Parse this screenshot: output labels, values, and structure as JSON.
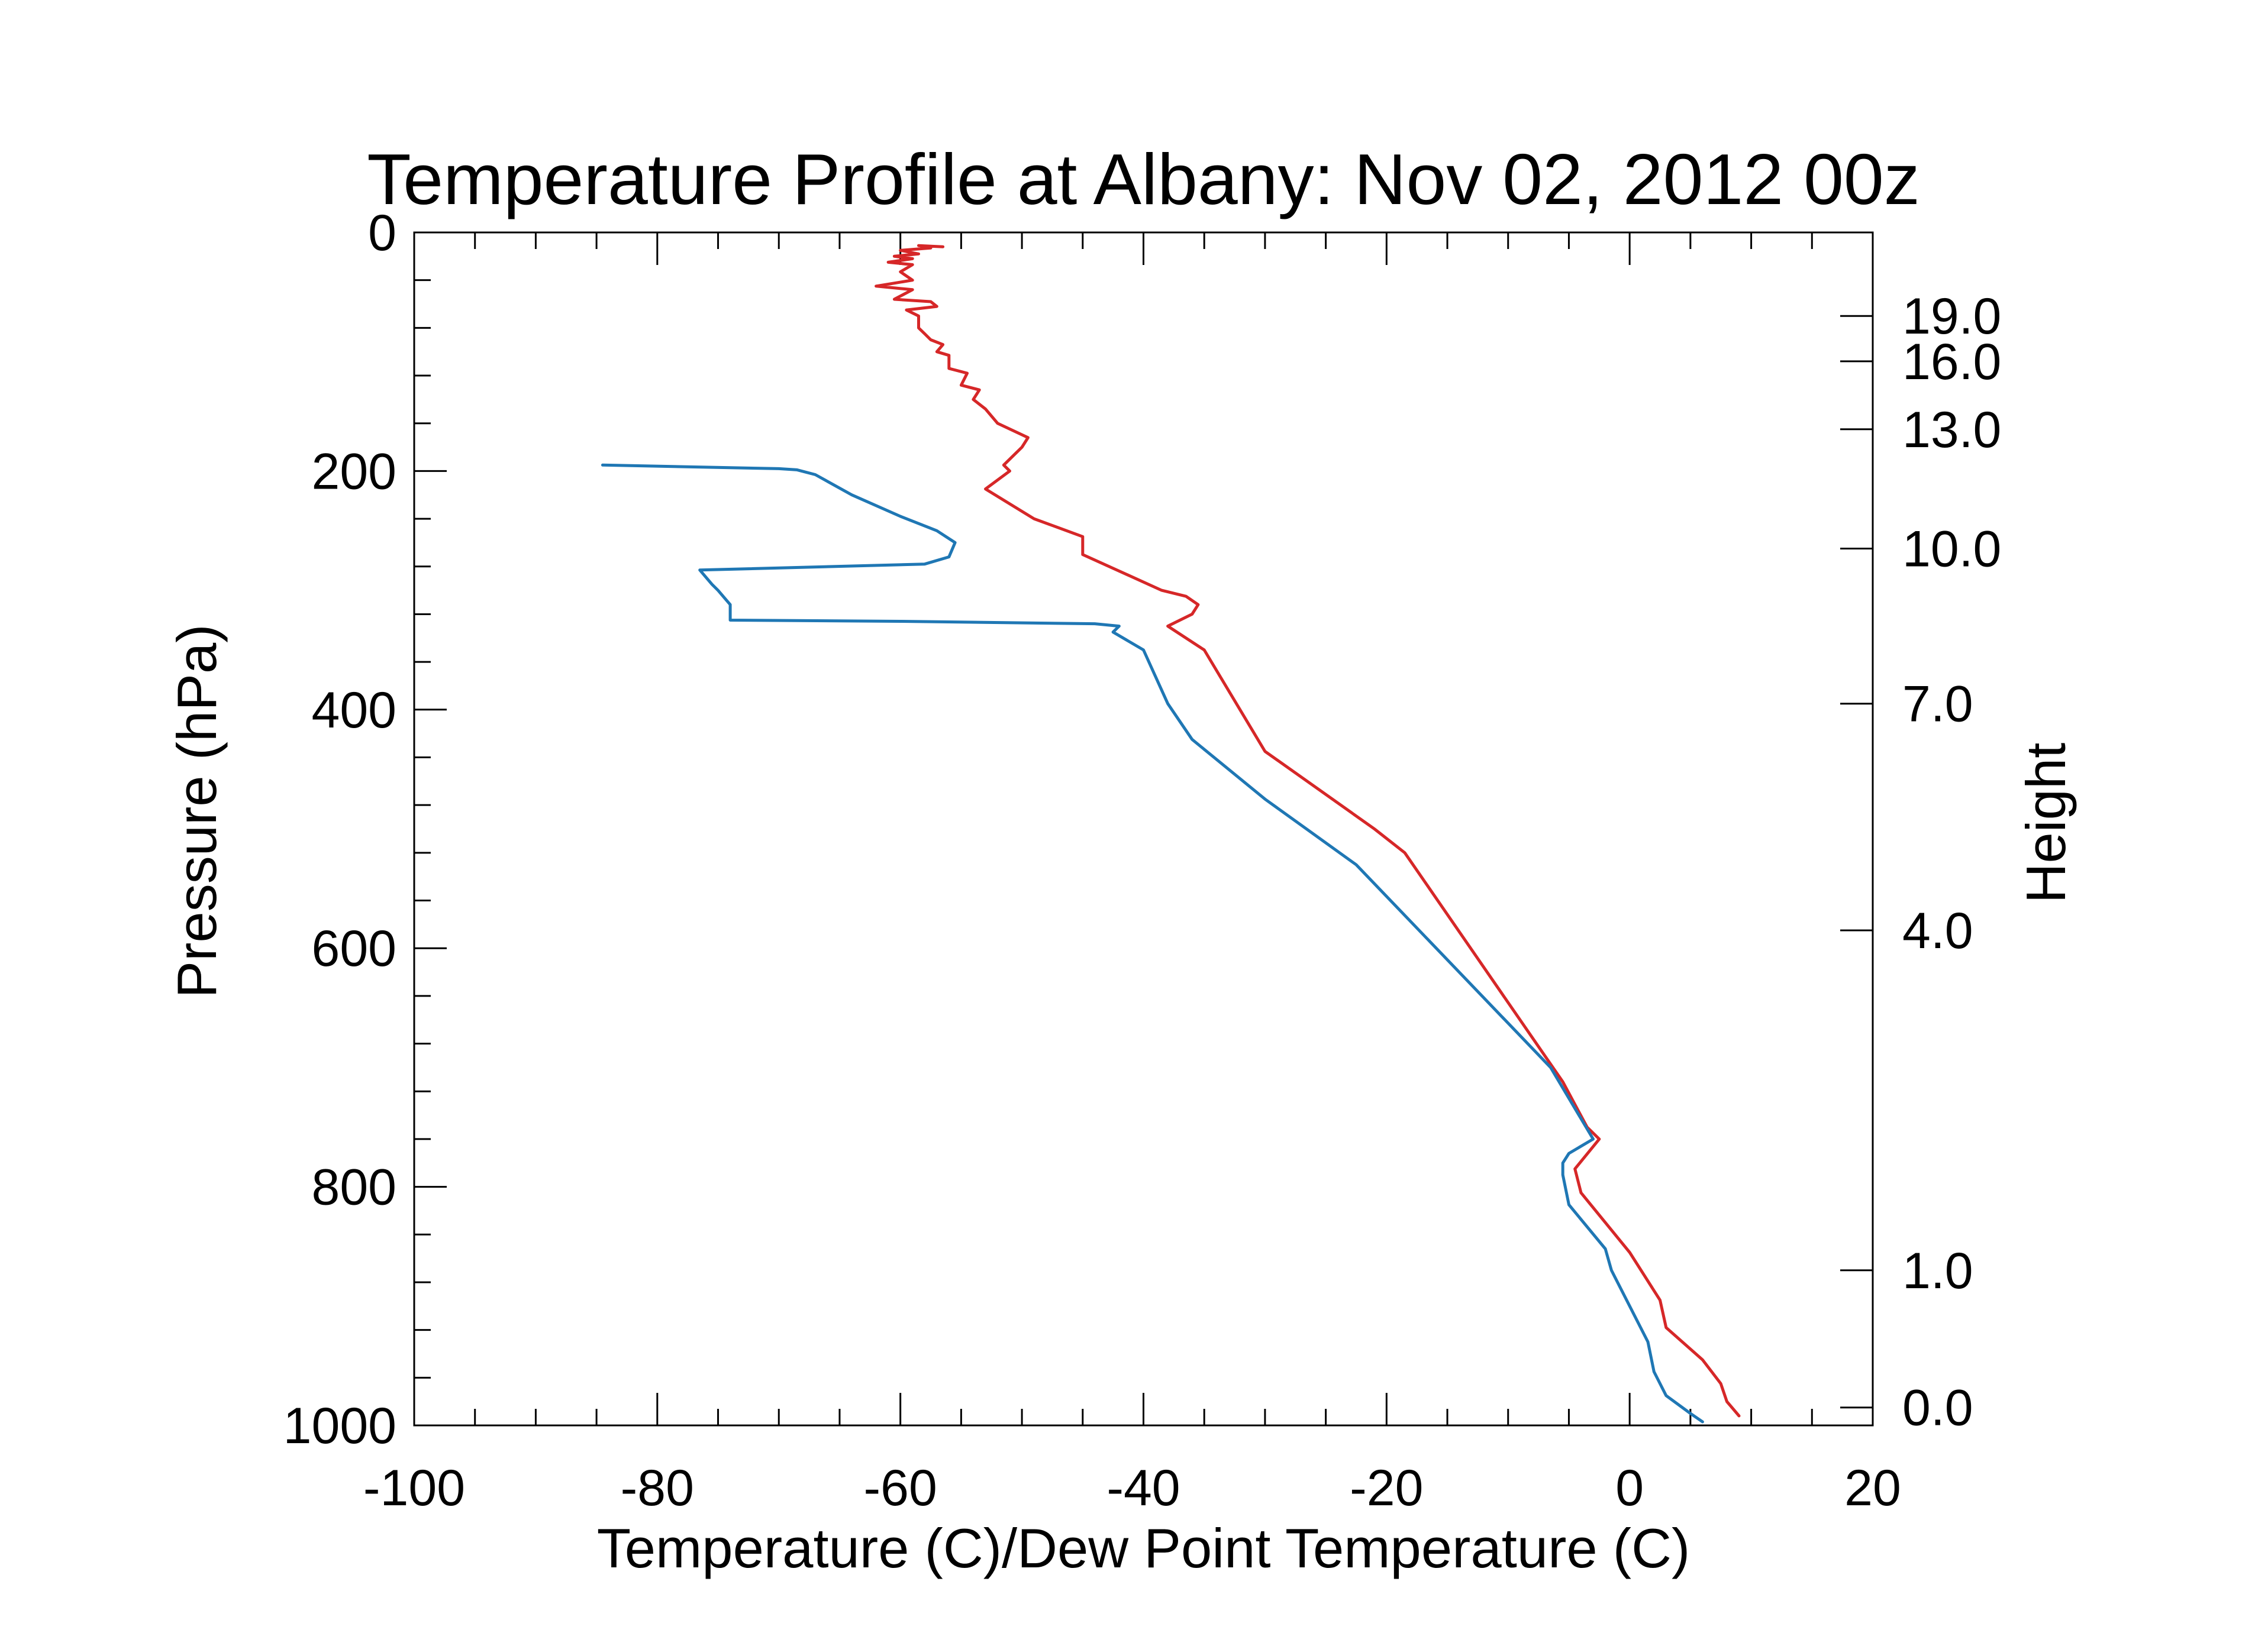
{
  "chart_data": {
    "type": "line",
    "title": "Temperature Profile at Albany: Nov 02, 2012 00z",
    "xlabel": "Temperature (C)/Dew Point Temperature (C)",
    "ylabel": "Pressure (hPa)",
    "y2label": "Height",
    "xlim": [
      -100,
      20
    ],
    "ylim": [
      1000,
      0
    ],
    "y_inverted": true,
    "x_major_ticks": [
      -100,
      -80,
      -60,
      -40,
      -20,
      0,
      20
    ],
    "x_tick_labels": [
      "-100",
      "-80",
      "-60",
      "-40",
      "-20",
      "0",
      "20"
    ],
    "x_minor_ticks": [
      -95,
      -90,
      -85,
      -75,
      -70,
      -65,
      -55,
      -50,
      -45,
      -35,
      -30,
      -25,
      -15,
      -10,
      -5,
      5,
      10,
      15
    ],
    "y_major_ticks": [
      0,
      200,
      400,
      600,
      800,
      1000
    ],
    "y_tick_labels": [
      "0",
      "200",
      "400",
      "600",
      "800",
      "1000"
    ],
    "y_minor_ticks": [
      40,
      80,
      120,
      160,
      240,
      280,
      320,
      360,
      440,
      480,
      520,
      560,
      640,
      680,
      720,
      760,
      840,
      880,
      920,
      960
    ],
    "height_ticks": [
      {
        "label": "19.0",
        "pressure": 70
      },
      {
        "label": "16.0",
        "pressure": 108
      },
      {
        "label": "13.0",
        "pressure": 165
      },
      {
        "label": "10.0",
        "pressure": 265
      },
      {
        "label": "7.0",
        "pressure": 395
      },
      {
        "label": "4.0",
        "pressure": 585
      },
      {
        "label": "1.0",
        "pressure": 870
      },
      {
        "label": "0.0",
        "pressure": 985
      }
    ],
    "series": [
      {
        "name": "Temperature",
        "color": "#d62728",
        "points": [
          [
            9,
            992
          ],
          [
            8,
            980
          ],
          [
            7.5,
            965
          ],
          [
            6,
            945
          ],
          [
            3,
            918
          ],
          [
            2.5,
            895
          ],
          [
            0,
            855
          ],
          [
            -2,
            830
          ],
          [
            -4,
            805
          ],
          [
            -4.5,
            785
          ],
          [
            -2.5,
            760
          ],
          [
            -3.5,
            750
          ],
          [
            -5.5,
            712
          ],
          [
            -18.5,
            520
          ],
          [
            -21,
            500
          ],
          [
            -30,
            435
          ],
          [
            -35,
            350
          ],
          [
            -38,
            330
          ],
          [
            -36,
            320
          ],
          [
            -35.5,
            312
          ],
          [
            -36.5,
            305
          ],
          [
            -38.5,
            300
          ],
          [
            -45,
            270
          ],
          [
            -45,
            255
          ],
          [
            -49,
            240
          ],
          [
            -53,
            215
          ],
          [
            -51,
            200
          ],
          [
            -51.5,
            195
          ],
          [
            -50,
            180
          ],
          [
            -49.5,
            172
          ],
          [
            -52,
            160
          ],
          [
            -53,
            148
          ],
          [
            -54,
            140
          ],
          [
            -53.5,
            132
          ],
          [
            -55,
            128
          ],
          [
            -54.5,
            118
          ],
          [
            -56,
            114
          ],
          [
            -56,
            103
          ],
          [
            -57,
            100
          ],
          [
            -56.5,
            94
          ],
          [
            -57.5,
            90
          ],
          [
            -58,
            85
          ],
          [
            -58.5,
            80
          ],
          [
            -58.5,
            70
          ],
          [
            -59.5,
            65
          ],
          [
            -57,
            62
          ],
          [
            -57.5,
            58
          ],
          [
            -60.5,
            56
          ],
          [
            -59,
            48
          ],
          [
            -62,
            45
          ],
          [
            -59,
            40
          ],
          [
            -60,
            33
          ],
          [
            -59,
            27
          ],
          [
            -61,
            25
          ],
          [
            -59,
            22
          ],
          [
            -60.5,
            20
          ],
          [
            -58.5,
            18
          ],
          [
            -60,
            15
          ],
          [
            -57.5,
            13
          ],
          [
            -58.5,
            11
          ],
          [
            -56.5,
            12
          ]
        ]
      },
      {
        "name": "Dew Point Temperature",
        "color": "#1f77b4",
        "points": [
          [
            6,
            997
          ],
          [
            5,
            990
          ],
          [
            3,
            975
          ],
          [
            2,
            955
          ],
          [
            1.5,
            930
          ],
          [
            -1.5,
            870
          ],
          [
            -2,
            852
          ],
          [
            -5,
            815
          ],
          [
            -5.5,
            790
          ],
          [
            -5.5,
            780
          ],
          [
            -5,
            772
          ],
          [
            -3,
            760
          ],
          [
            -6.5,
            700
          ],
          [
            -22.5,
            530
          ],
          [
            -30,
            475
          ],
          [
            -36,
            425
          ],
          [
            -38,
            395
          ],
          [
            -40,
            350
          ],
          [
            -42.5,
            335
          ],
          [
            -42,
            330
          ],
          [
            -44,
            328
          ],
          [
            -60,
            326
          ],
          [
            -74,
            325
          ],
          [
            -74,
            312
          ],
          [
            -75,
            300
          ],
          [
            -75.5,
            295
          ],
          [
            -76.5,
            283
          ],
          [
            -58,
            278
          ],
          [
            -56,
            272
          ],
          [
            -55.5,
            260
          ],
          [
            -57,
            250
          ],
          [
            -60,
            238
          ],
          [
            -64,
            220
          ],
          [
            -67,
            203
          ],
          [
            -68.5,
            199
          ],
          [
            -70,
            198
          ],
          [
            -84.5,
            195
          ]
        ]
      }
    ]
  }
}
